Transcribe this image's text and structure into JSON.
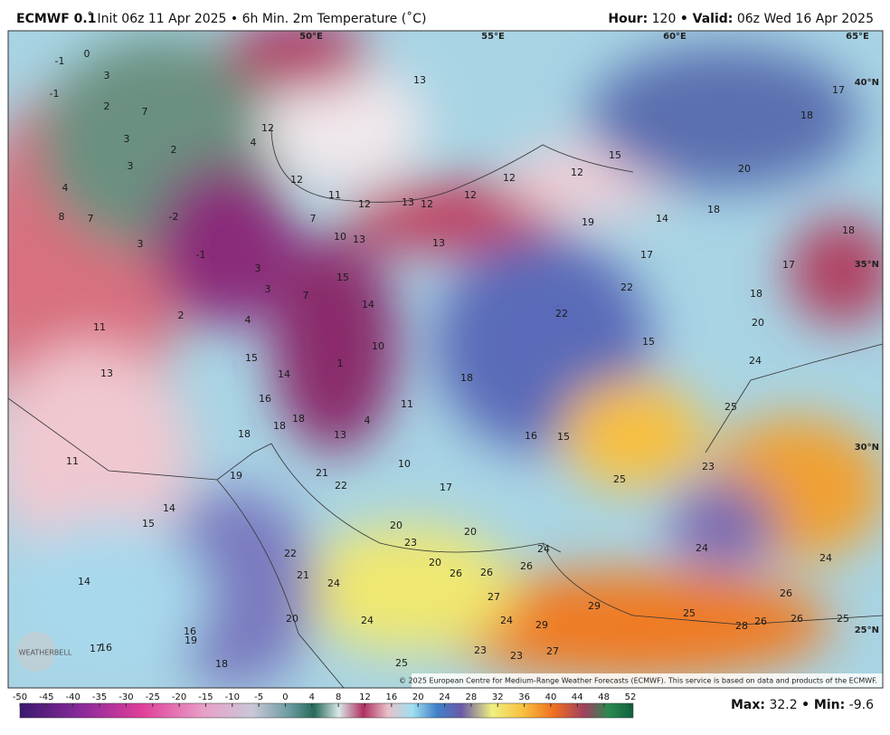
{
  "header": {
    "model": "ECMWF 0.1",
    "description": "˚ Init 06z 11 Apr 2025 • 6h Min. 2m Temperature (˚C)",
    "hour_label": "Hour:",
    "hour": 120,
    "valid_label": "• Valid:",
    "valid": "06z Wed 16 Apr 2025"
  },
  "map": {
    "longitude_labels": [
      "50°E",
      "55°E",
      "60°E",
      "65°E"
    ],
    "latitude_labels": [
      "40°N",
      "35°N",
      "30°N",
      "25°N"
    ],
    "temperature_labels": [
      -1,
      0,
      3,
      -1,
      2,
      7,
      3,
      2,
      3,
      4,
      4,
      8,
      7,
      -2,
      3,
      -1,
      3,
      3,
      7,
      2,
      4,
      11,
      13,
      1,
      15,
      14,
      16,
      18,
      18,
      18,
      13,
      4,
      11,
      10,
      14,
      15,
      10,
      13,
      7,
      11,
      12,
      12,
      13,
      12,
      12,
      13,
      12,
      12,
      15,
      13,
      12,
      19,
      14,
      17,
      22,
      22,
      15,
      18,
      16,
      15,
      10,
      17,
      25,
      23,
      25,
      24,
      20,
      18,
      17,
      18,
      18,
      20,
      18,
      17,
      11,
      19,
      21,
      22,
      14,
      15,
      20,
      20,
      23,
      24,
      24,
      24,
      14,
      22,
      21,
      24,
      20,
      26,
      26,
      26,
      27,
      29,
      25,
      26,
      28,
      26,
      26,
      25,
      24,
      24,
      29,
      20,
      16,
      19,
      17,
      16,
      18,
      23,
      23,
      27,
      25
    ],
    "copyright": "© 2025 European Centre for Medium-Range Weather Forecasts (ECMWF). This service is based on data and products of the ECMWF.",
    "logo": "WEATHERBELL"
  },
  "colorbar": {
    "ticks": [
      -50,
      -45,
      -40,
      -35,
      -30,
      -25,
      -20,
      -15,
      -10,
      -5,
      0,
      4,
      8,
      12,
      16,
      20,
      24,
      28,
      32,
      36,
      40,
      44,
      48,
      52
    ]
  },
  "footer": {
    "max_label": "Max:",
    "max": 32.2,
    "min_label": "• Min:",
    "min": -9.6
  }
}
